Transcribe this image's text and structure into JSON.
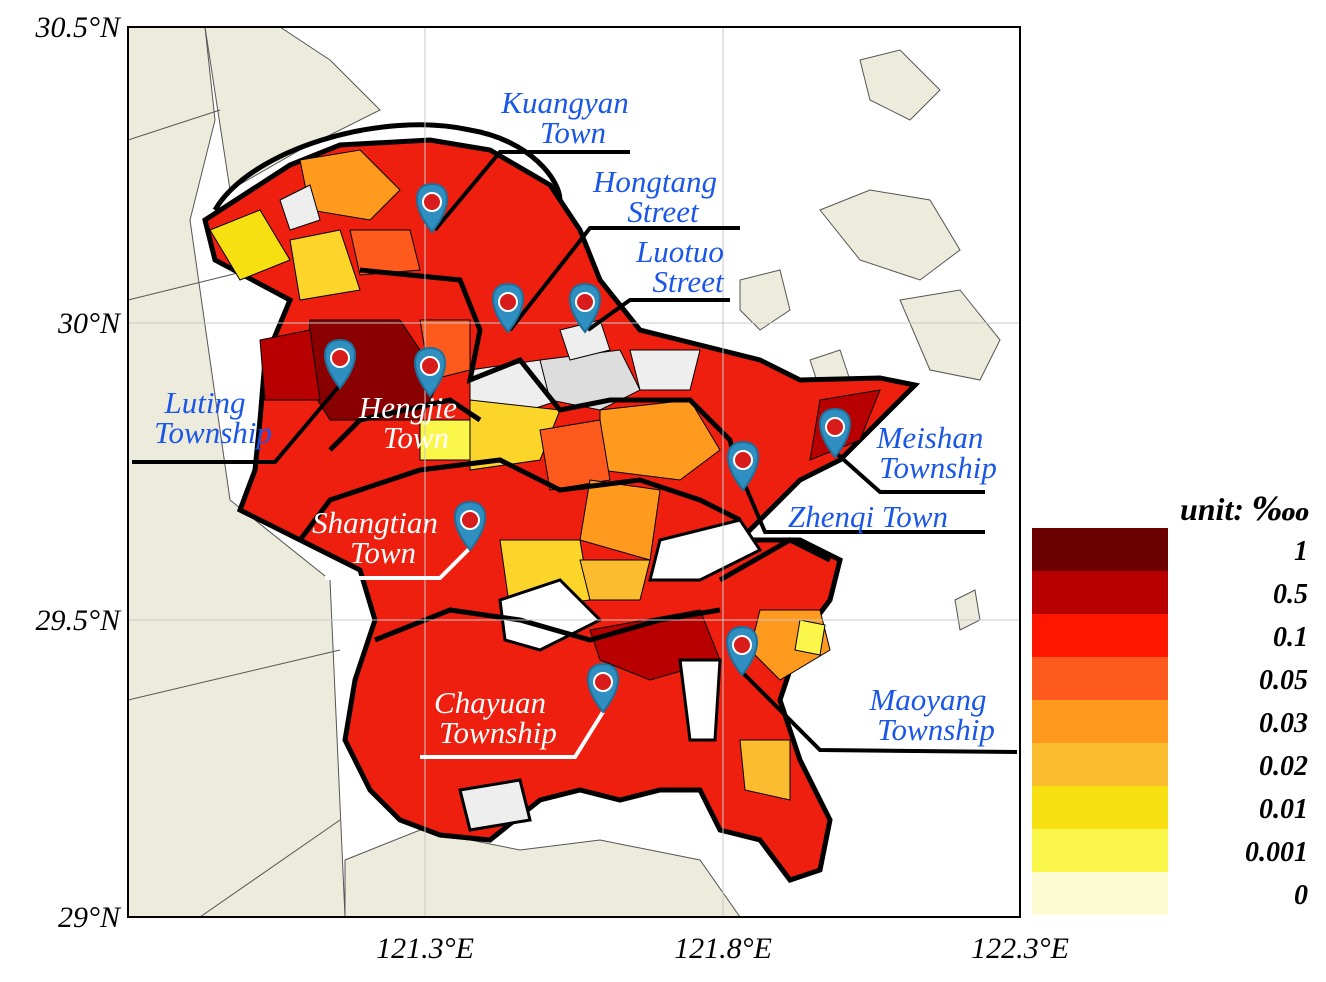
{
  "map": {
    "lat_labels": [
      "30.5°N",
      "30°N",
      "29.5°N",
      "29°N"
    ],
    "lon_labels": [
      "121.3°E",
      "121.8°E",
      "122.3°E"
    ],
    "places": [
      {
        "lines": [
          "Kuangyan",
          "Town"
        ],
        "color": "#1a56e8"
      },
      {
        "lines": [
          "Hongtang",
          "Street"
        ],
        "color": "#1a56e8"
      },
      {
        "lines": [
          "Luotuo",
          "Street"
        ],
        "color": "#1a56e8"
      },
      {
        "lines": [
          "Luting",
          "Township"
        ],
        "color": "#1a56e8"
      },
      {
        "lines": [
          "Hengjie",
          "Town"
        ],
        "color": "#ffffff"
      },
      {
        "lines": [
          "Meishan",
          "Township"
        ],
        "color": "#1a56e8"
      },
      {
        "lines": [
          "Zhenqi Town"
        ],
        "color": "#1a56e8"
      },
      {
        "lines": [
          "Shangtian",
          "Town"
        ],
        "color": "#ffffff"
      },
      {
        "lines": [
          "Maoyang",
          "Township"
        ],
        "color": "#1a56e8"
      },
      {
        "lines": [
          "Chayuan",
          "Township"
        ],
        "color": "#ffffff"
      }
    ],
    "legend": {
      "title": "unit: ‱",
      "labels": [
        "1",
        "0.5",
        "0.1",
        "0.05",
        "0.03",
        "0.02",
        "0.01",
        "0.001",
        "0"
      ],
      "colors": [
        "#6b0000",
        "#b80000",
        "#ff1500",
        "#ff5a1e",
        "#ff9a1e",
        "#fbbd2f",
        "#f7e012",
        "#fbf64a",
        "#fdfbd2"
      ]
    }
  }
}
